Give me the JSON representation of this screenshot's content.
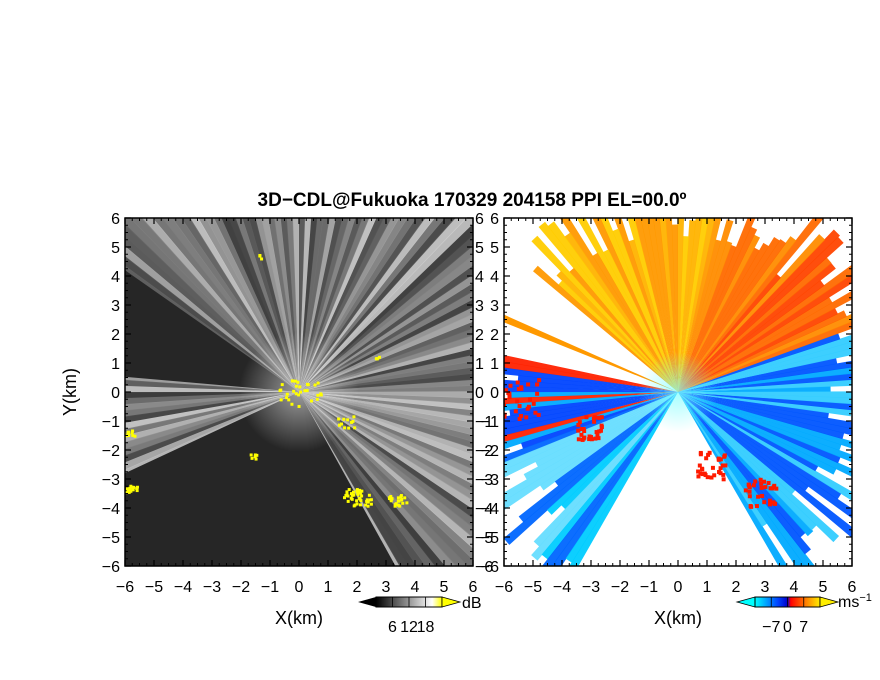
{
  "title": "3D−CDL@Fukuoka 170329 204158 PPI EL=00.0º",
  "chart_data": [
    {
      "type": "heatmap",
      "name": "reflectivity-ppi",
      "xlabel": "X(km)",
      "ylabel": "Y(km)",
      "xlim": [
        -6,
        6
      ],
      "ylim": [
        -6,
        6
      ],
      "x_ticks": [
        "−6",
        "−5",
        "−4",
        "−3",
        "−2",
        "−1",
        "0",
        "1",
        "2",
        "3",
        "4",
        "5",
        "6"
      ],
      "y_ticks": [
        "6",
        "5",
        "4",
        "3",
        "2",
        "1",
        "0",
        "−1",
        "−2",
        "−3",
        "−4",
        "−5",
        "−6"
      ],
      "colorbar": {
        "unit": "dB",
        "ticks": [
          "6",
          "12",
          "18"
        ],
        "colors": [
          "#000000",
          "#ffffff",
          "#ffff00"
        ]
      }
    },
    {
      "type": "heatmap",
      "name": "doppler-velocity-ppi",
      "xlabel": "X(km)",
      "xlim": [
        -6,
        6
      ],
      "ylim": [
        -6,
        6
      ],
      "x_ticks": [
        "−6",
        "−5",
        "−4",
        "−3",
        "−2",
        "−1",
        "0",
        "1",
        "2",
        "3",
        "4",
        "5",
        "6"
      ],
      "y_ticks": [
        "6",
        "5",
        "4",
        "3",
        "2",
        "1",
        "0",
        "−1",
        "−2",
        "−3",
        "−4",
        "−5",
        "−6"
      ],
      "colorbar": {
        "unit": "ms",
        "unit_exp": "−1",
        "ticks": [
          "−7",
          "0",
          "7"
        ],
        "colors": [
          "#00ffff",
          "#0000ff",
          "#ff0000",
          "#ffff00"
        ]
      }
    }
  ]
}
